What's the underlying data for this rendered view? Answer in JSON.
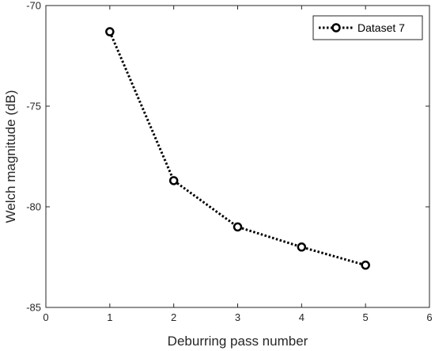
{
  "chart_data": {
    "type": "line",
    "xlabel": "Deburring pass number",
    "ylabel": "Welch magnitude (dB)",
    "xlim": [
      0,
      6
    ],
    "ylim": [
      -85,
      -70
    ],
    "xticks": [
      "0",
      "1",
      "2",
      "3",
      "4",
      "5",
      "6"
    ],
    "yticks": [
      "-70",
      "-75",
      "-80",
      "-85"
    ],
    "grid": false,
    "legend_position": "top-right",
    "series": [
      {
        "name": "Dataset 7",
        "color": "#000000",
        "line_style": "dotted",
        "marker": "circle",
        "x": [
          1,
          2,
          3,
          4,
          5
        ],
        "y": [
          -71.3,
          -78.7,
          -81.0,
          -82.0,
          -82.9
        ]
      }
    ]
  }
}
